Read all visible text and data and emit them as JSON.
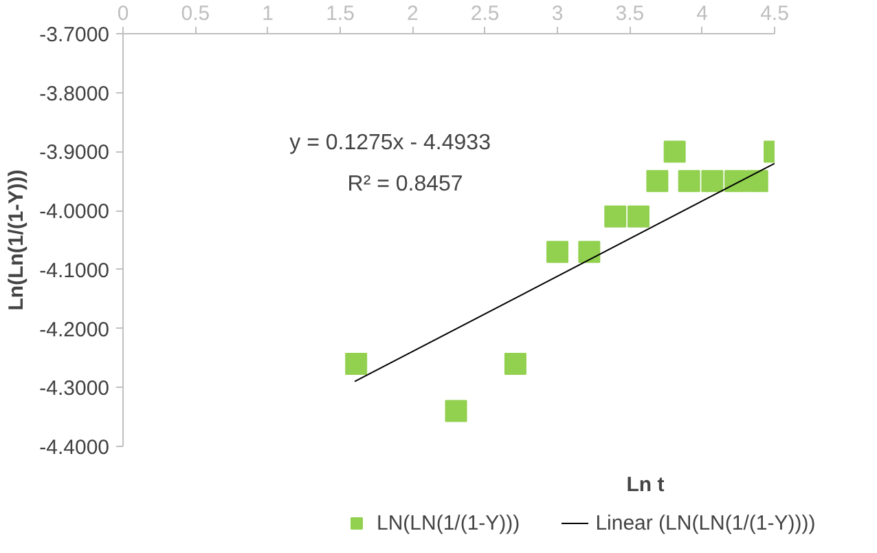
{
  "chart_data": {
    "type": "scatter",
    "xlabel": "Ln t",
    "ylabel": "Ln(Ln(1/(1-Y)))",
    "xlim": [
      0,
      4.5
    ],
    "xticks": [
      0,
      0.5,
      1,
      1.5,
      2,
      2.5,
      3,
      3.5,
      4,
      4.5
    ],
    "ylim": [
      -4.4,
      -3.7
    ],
    "yticks": [
      {
        "value": -4.4,
        "label": "-4.4000"
      },
      {
        "value": -4.3,
        "label": "-4.3000"
      },
      {
        "value": -4.2,
        "label": "-4.2000"
      },
      {
        "value": -4.1,
        "label": "-4.1000"
      },
      {
        "value": -4.0,
        "label": "-4.0000"
      },
      {
        "value": -3.9,
        "label": "-3.9000"
      },
      {
        "value": -3.8,
        "label": "-3.8000"
      },
      {
        "value": -3.7,
        "label": "-3.7000"
      }
    ],
    "x": [
      1.61,
      2.3,
      2.71,
      3.0,
      3.22,
      3.4,
      3.56,
      3.69,
      3.81,
      3.91,
      4.07,
      4.23,
      4.38,
      4.5
    ],
    "series": [
      {
        "name": "LN(LN(1/(1-Y)))",
        "color": "#92d050",
        "marker": "square",
        "values": [
          -4.26,
          -4.34,
          -4.26,
          -4.07,
          -4.07,
          -4.01,
          -4.01,
          -3.95,
          -3.9,
          -3.95,
          -3.95,
          -3.95,
          -3.95,
          -3.9
        ]
      },
      {
        "name": "Linear (LN(LN(1/(1-Y))))",
        "type": "line",
        "color": "#000000",
        "line_style": "solid",
        "x": [
          1.6,
          4.5
        ],
        "values": [
          -4.29,
          -3.92
        ]
      }
    ],
    "annotations": [
      "y = 0.1275x - 4.4933",
      "R² = 0.8457"
    ],
    "legend": "bottom",
    "grid": false
  }
}
